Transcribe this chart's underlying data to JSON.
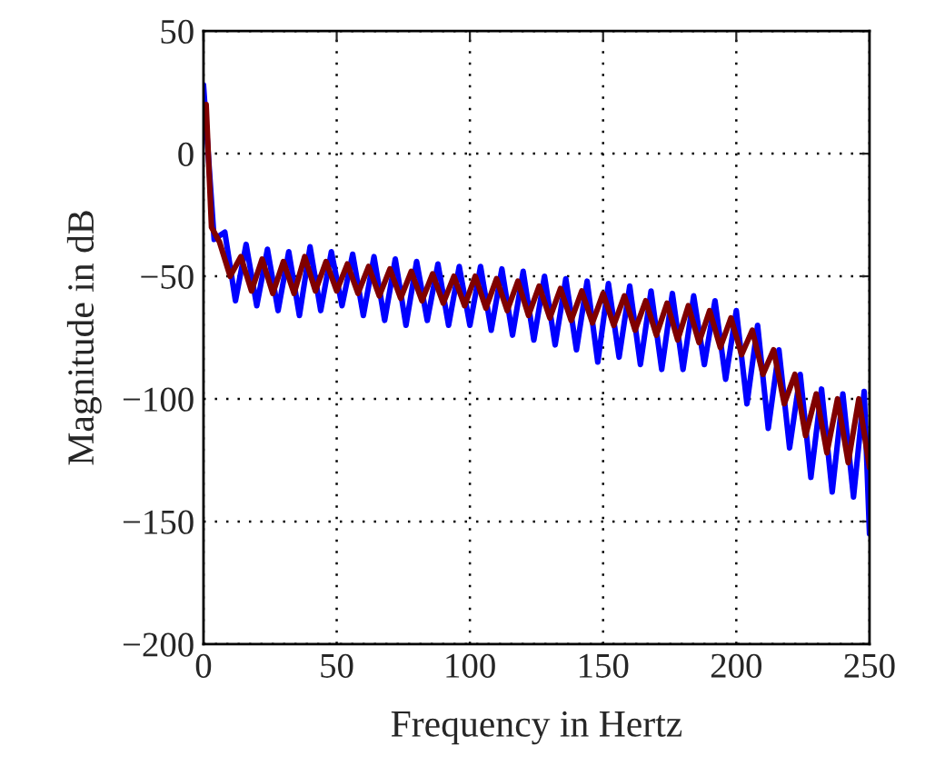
{
  "chart_data": {
    "type": "line",
    "xlabel": "Frequency in Hertz",
    "ylabel": "Magnitude in dB",
    "xlim": [
      0,
      250
    ],
    "xticks": [
      0,
      50,
      100,
      150,
      200,
      250
    ],
    "ylim": [
      -200,
      50
    ],
    "yticks": [
      {
        "value": -200,
        "label": "−200"
      },
      {
        "value": -150,
        "label": "−150"
      },
      {
        "value": -100,
        "label": "−100"
      },
      {
        "value": -50,
        "label": "−50"
      },
      0,
      50
    ],
    "grid": true,
    "line_style": "solid",
    "marker": "none",
    "series": [
      {
        "color": "#0000ff",
        "x": [
          0,
          4,
          8,
          12,
          16,
          20,
          24,
          28,
          32,
          36,
          40,
          44,
          48,
          52,
          56,
          60,
          64,
          68,
          72,
          76,
          80,
          84,
          88,
          92,
          96,
          100,
          104,
          108,
          112,
          116,
          120,
          124,
          128,
          132,
          136,
          140,
          144,
          148,
          152,
          156,
          160,
          164,
          168,
          172,
          176,
          180,
          184,
          188,
          192,
          196,
          200,
          204,
          208,
          212,
          216,
          220,
          224,
          228,
          232,
          236,
          240,
          244,
          248,
          250
        ],
        "values": [
          28,
          -35,
          -32,
          -60,
          -37,
          -62,
          -39,
          -64,
          -40,
          -66,
          -38,
          -64,
          -40,
          -62,
          -41,
          -66,
          -42,
          -68,
          -43,
          -70,
          -44,
          -68,
          -45,
          -70,
          -46,
          -70,
          -46,
          -72,
          -47,
          -74,
          -48,
          -76,
          -50,
          -78,
          -51,
          -80,
          -52,
          -85,
          -53,
          -83,
          -54,
          -86,
          -56,
          -88,
          -57,
          -88,
          -58,
          -86,
          -60,
          -92,
          -64,
          -102,
          -70,
          -112,
          -80,
          -120,
          -90,
          -132,
          -96,
          -138,
          -98,
          -140,
          -97,
          -155
        ]
      },
      {
        "color": "#800000",
        "x": [
          1,
          3,
          6,
          10,
          14,
          18,
          22,
          26,
          30,
          34,
          38,
          42,
          46,
          50,
          54,
          58,
          62,
          66,
          70,
          74,
          78,
          82,
          86,
          90,
          94,
          98,
          102,
          106,
          110,
          114,
          118,
          122,
          126,
          130,
          134,
          138,
          142,
          146,
          150,
          154,
          158,
          162,
          166,
          170,
          174,
          178,
          182,
          186,
          190,
          194,
          198,
          202,
          206,
          210,
          214,
          218,
          222,
          226,
          230,
          234,
          238,
          242,
          246,
          250
        ],
        "values": [
          20,
          -30,
          -36,
          -50,
          -42,
          -56,
          -43,
          -57,
          -44,
          -57,
          -42,
          -56,
          -44,
          -56,
          -45,
          -57,
          -46,
          -58,
          -47,
          -59,
          -48,
          -60,
          -49,
          -61,
          -50,
          -62,
          -50,
          -63,
          -51,
          -64,
          -52,
          -66,
          -54,
          -67,
          -55,
          -68,
          -56,
          -69,
          -57,
          -70,
          -58,
          -72,
          -60,
          -74,
          -61,
          -76,
          -62,
          -77,
          -64,
          -79,
          -67,
          -82,
          -72,
          -90,
          -80,
          -102,
          -90,
          -115,
          -98,
          -122,
          -100,
          -126,
          -100,
          -128
        ]
      }
    ]
  }
}
